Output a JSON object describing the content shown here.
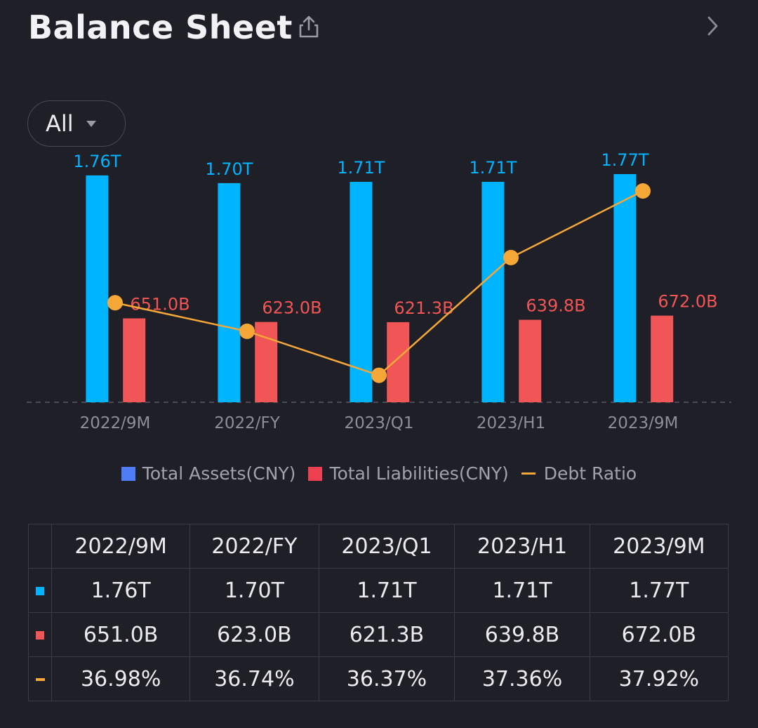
{
  "header": {
    "title": "Balance Sheet"
  },
  "filter": {
    "label": "All"
  },
  "colors": {
    "assets": "#00b4ff",
    "liabilities": "#f25555",
    "ratio": "#f5a837",
    "legend_assets": "#4f7cf7",
    "legend_liabilities": "#ef4052",
    "positive": "#34c06e"
  },
  "legend": {
    "assets": "Total Assets(CNY)",
    "liabilities": "Total Liabilities(CNY)",
    "ratio": "Debt Ratio"
  },
  "chart_data": {
    "type": "bar",
    "categories": [
      "2022/9M",
      "2022/FY",
      "2023/Q1",
      "2023/H1",
      "2023/9M"
    ],
    "series": [
      {
        "name": "Total Assets(CNY)",
        "values": [
          1760,
          1700,
          1710,
          1710,
          1770
        ],
        "labels": [
          "1.76T",
          "1.70T",
          "1.71T",
          "1.71T",
          "1.77T"
        ]
      },
      {
        "name": "Total Liabilities(CNY)",
        "values": [
          651.0,
          623.0,
          621.3,
          639.8,
          672.0
        ],
        "labels": [
          "651.0B",
          "623.0B",
          "621.3B",
          "639.8B",
          "672.0B"
        ]
      },
      {
        "name": "Debt Ratio",
        "type": "line",
        "values": [
          36.98,
          36.74,
          36.37,
          37.36,
          37.92
        ],
        "labels": [
          "36.98%",
          "36.74%",
          "36.37%",
          "37.36%",
          "37.92%"
        ]
      }
    ],
    "ylim": [
      0,
      1770
    ],
    "ratio_ylim": [
      36.22,
      38.05
    ],
    "grid": false,
    "legend_position": "bottom"
  },
  "table": {
    "headers": [
      "2022/9M",
      "2022/FY",
      "2023/Q1",
      "2023/H1",
      "2023/9M"
    ],
    "rows": [
      {
        "marker": "assets",
        "values": [
          "1.76T",
          "1.70T",
          "1.71T",
          "1.71T",
          "1.77T"
        ]
      },
      {
        "marker": "liabilities",
        "values": [
          "651.0B",
          "623.0B",
          "621.3B",
          "639.8B",
          "672.0B"
        ]
      },
      {
        "marker": "ratio",
        "values": [
          "36.98%",
          "36.74%",
          "36.37%",
          "37.36%",
          "37.92%"
        ]
      }
    ]
  }
}
